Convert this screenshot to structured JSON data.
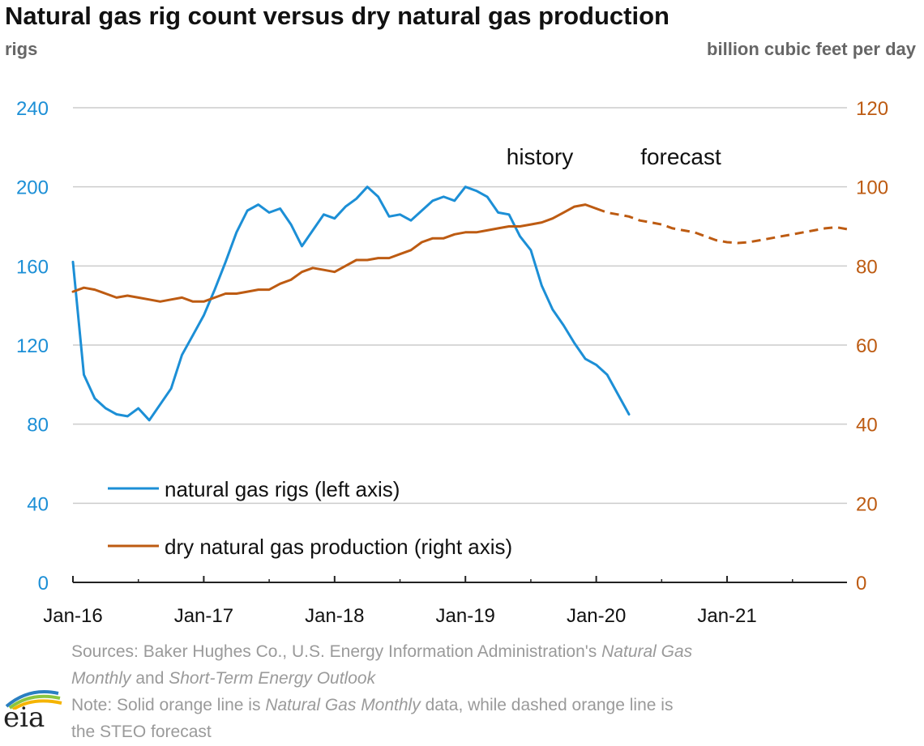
{
  "title": "Natural gas rig count versus dry natural gas production",
  "left_unit": "rigs",
  "right_unit": "billion cubic feet per day",
  "logo_text": "eia",
  "sources_lines": [
    [
      {
        "text": "Sources: Baker Hughes Co., U.S. Energy Information Administration's ",
        "italic": false
      },
      {
        "text": "Natural Gas",
        "italic": true
      }
    ],
    [
      {
        "text": "Monthly",
        "italic": true
      },
      {
        "text": " and ",
        "italic": false
      },
      {
        "text": "Short-Term Energy Outlook",
        "italic": true
      }
    ],
    [
      {
        "text": "Note: Solid orange line is ",
        "italic": false
      },
      {
        "text": "Natural Gas Monthly",
        "italic": true
      },
      {
        "text": " data, while dashed orange line is",
        "italic": false
      }
    ],
    [
      {
        "text": "the STEO forecast",
        "italic": false
      }
    ]
  ],
  "colors": {
    "rigs": "#1c8fd6",
    "production": "#bd5b12",
    "grid": "#cccccc",
    "axis": "#222222"
  },
  "chart_data": {
    "type": "line",
    "x_ticks": [
      "Jan-16",
      "Jan-17",
      "Jan-18",
      "Jan-19",
      "Jan-20",
      "Jan-21"
    ],
    "x_range": [
      "2016-01",
      "2021-12"
    ],
    "y_left": {
      "ticks": [
        0,
        40,
        80,
        120,
        160,
        200,
        240
      ],
      "range": [
        0,
        240
      ]
    },
    "y_right": {
      "ticks": [
        0,
        20,
        40,
        60,
        80,
        100,
        120
      ],
      "range": [
        0,
        120
      ]
    },
    "grid": true,
    "annotations": [
      "history",
      "forecast"
    ],
    "legend_position": "bottom-left",
    "series": [
      {
        "name": "natural gas rigs (left axis)",
        "axis": "left",
        "style": "solid",
        "x": [
          "2016-01",
          "2016-02",
          "2016-03",
          "2016-04",
          "2016-05",
          "2016-06",
          "2016-07",
          "2016-08",
          "2016-09",
          "2016-10",
          "2016-11",
          "2016-12",
          "2017-01",
          "2017-02",
          "2017-03",
          "2017-04",
          "2017-05",
          "2017-06",
          "2017-07",
          "2017-08",
          "2017-09",
          "2017-10",
          "2017-11",
          "2017-12",
          "2018-01",
          "2018-02",
          "2018-03",
          "2018-04",
          "2018-05",
          "2018-06",
          "2018-07",
          "2018-08",
          "2018-09",
          "2018-10",
          "2018-11",
          "2018-12",
          "2019-01",
          "2019-02",
          "2019-03",
          "2019-04",
          "2019-05",
          "2019-06",
          "2019-07",
          "2019-08",
          "2019-09",
          "2019-10",
          "2019-11",
          "2019-12",
          "2020-01",
          "2020-02",
          "2020-03",
          "2020-04"
        ],
        "values": [
          162,
          105,
          93,
          88,
          85,
          84,
          88,
          82,
          90,
          98,
          115,
          125,
          135,
          148,
          162,
          177,
          188,
          191,
          187,
          189,
          181,
          170,
          178,
          186,
          184,
          190,
          194,
          200,
          195,
          185,
          186,
          183,
          188,
          193,
          195,
          193,
          200,
          198,
          195,
          187,
          186,
          175,
          168,
          150,
          138,
          130,
          121,
          113,
          110,
          105,
          95,
          85
        ]
      },
      {
        "name": "dry natural gas production (right axis)",
        "axis": "right",
        "style": "solid",
        "x": [
          "2016-01",
          "2016-02",
          "2016-03",
          "2016-04",
          "2016-05",
          "2016-06",
          "2016-07",
          "2016-08",
          "2016-09",
          "2016-10",
          "2016-11",
          "2016-12",
          "2017-01",
          "2017-02",
          "2017-03",
          "2017-04",
          "2017-05",
          "2017-06",
          "2017-07",
          "2017-08",
          "2017-09",
          "2017-10",
          "2017-11",
          "2017-12",
          "2018-01",
          "2018-02",
          "2018-03",
          "2018-04",
          "2018-05",
          "2018-06",
          "2018-07",
          "2018-08",
          "2018-09",
          "2018-10",
          "2018-11",
          "2018-12",
          "2019-01",
          "2019-02",
          "2019-03",
          "2019-04",
          "2019-05",
          "2019-06",
          "2019-07",
          "2019-08",
          "2019-09",
          "2019-10",
          "2019-11",
          "2019-12",
          "2020-01"
        ],
        "values": [
          73.5,
          74.5,
          74,
          73,
          72,
          72.5,
          72,
          71.5,
          71,
          71.5,
          72,
          71,
          71,
          72,
          73,
          73,
          73.5,
          74,
          74,
          75.5,
          76.5,
          78.5,
          79.5,
          79,
          78.5,
          80,
          81.5,
          81.5,
          82,
          82,
          83,
          84,
          86,
          87,
          87,
          88,
          88.5,
          88.5,
          89,
          89.5,
          90,
          90,
          90.5,
          91,
          92,
          93.5,
          95,
          95.5,
          94.5
        ]
      },
      {
        "name": "",
        "axis": "right",
        "style": "dashed",
        "x": [
          "2020-01",
          "2020-02",
          "2020-03",
          "2020-04",
          "2020-05",
          "2020-06",
          "2020-07",
          "2020-08",
          "2020-09",
          "2020-10",
          "2020-11",
          "2020-12",
          "2021-01",
          "2021-02",
          "2021-03",
          "2021-04",
          "2021-05",
          "2021-06",
          "2021-07",
          "2021-08",
          "2021-09",
          "2021-10",
          "2021-11",
          "2021-12"
        ],
        "values": [
          94.5,
          93.5,
          93,
          92.5,
          91.5,
          91,
          90.5,
          89.5,
          89,
          88.5,
          87.5,
          86.5,
          86,
          85.8,
          86,
          86.5,
          87,
          87.5,
          88,
          88.5,
          89,
          89.5,
          89.8,
          89.3
        ]
      }
    ]
  }
}
